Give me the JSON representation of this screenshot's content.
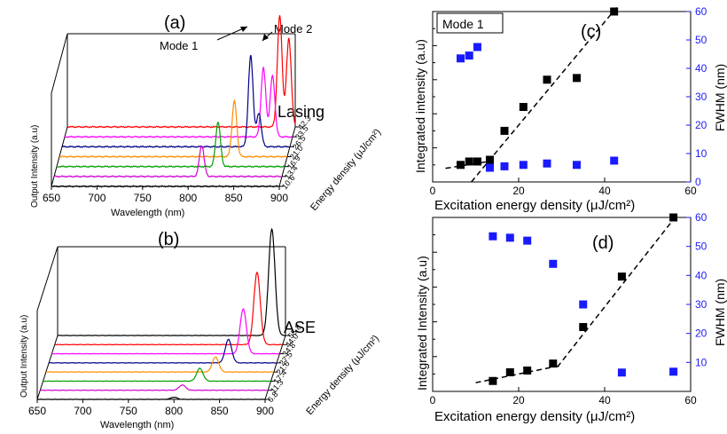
{
  "figure": {
    "panel_a_label": "(a)",
    "panel_b_label": "(b)",
    "panel_c_label": "(c)",
    "panel_d_label": "(d)",
    "lasing_label": "Lasing",
    "ase_label": "ASE",
    "mode1_label": "Mode 1",
    "mode2_label": "Mode 2",
    "mode1_box_label": "Mode 1"
  },
  "chart_data": [
    {
      "id": "a",
      "type": "line",
      "title": "",
      "xlabel": "Wavelength (nm)",
      "ylabel": "Output Intensity (a.u)",
      "zlabel": "Energy density (μJ/cm²)",
      "x_ticks": [
        650,
        700,
        750,
        800,
        850,
        900
      ],
      "z_ticks": [
        "10.6",
        "13.4",
        "16.9",
        "21.0",
        "26.5",
        "33.5",
        "42.3"
      ],
      "colors": [
        "#000000",
        "#d400d4",
        "#00a000",
        "#ff8c00",
        "#00008b",
        "#ff00ff",
        "#ff0000"
      ],
      "series": [
        {
          "energy": 10.6,
          "peaks": []
        },
        {
          "energy": 13.4,
          "peaks": [
            {
              "wavelength": 812,
              "height": 0.28
            }
          ]
        },
        {
          "energy": 16.9,
          "peaks": [
            {
              "wavelength": 827,
              "height": 0.4
            }
          ]
        },
        {
          "energy": 21.0,
          "peaks": [
            {
              "wavelength": 842,
              "height": 0.5
            }
          ]
        },
        {
          "energy": 26.5,
          "peaks": [
            {
              "wavelength": 857,
              "height": 0.82
            },
            {
              "wavelength": 866,
              "height": 0.3
            }
          ]
        },
        {
          "energy": 33.5,
          "peaks": [
            {
              "wavelength": 868,
              "height": 0.62
            },
            {
              "wavelength": 878,
              "height": 0.55
            }
          ]
        },
        {
          "energy": 42.3,
          "peaks": [
            {
              "wavelength": 883,
              "height": 1.0
            },
            {
              "wavelength": 893,
              "height": 0.8
            }
          ]
        }
      ]
    },
    {
      "id": "b",
      "type": "line",
      "title": "",
      "xlabel": "Wavelength (nm)",
      "ylabel": "Output Intensity (a.u)",
      "zlabel": "Energy density (μJ/cm²)",
      "x_ticks": [
        650,
        700,
        750,
        800,
        850,
        900
      ],
      "z_ticks": [
        "6.8",
        "11.3",
        "17.4",
        "21.6",
        "27.5",
        "34.8",
        "44.0",
        "55.8"
      ],
      "colors": [
        "#000000",
        "#d400d4",
        "#00a000",
        "#ff8c00",
        "#00008b",
        "#ff00ff",
        "#ff0000",
        "#000000"
      ],
      "series": [
        {
          "energy": 6.8,
          "peak_wavelength": 800,
          "height": 0.02
        },
        {
          "energy": 11.3,
          "peak_wavelength": 806,
          "height": 0.05
        },
        {
          "energy": 17.4,
          "peak_wavelength": 822,
          "height": 0.12
        },
        {
          "energy": 21.6,
          "peak_wavelength": 836,
          "height": 0.14
        },
        {
          "energy": 27.5,
          "peak_wavelength": 847,
          "height": 0.22
        },
        {
          "energy": 34.8,
          "peak_wavelength": 860,
          "height": 0.42
        },
        {
          "energy": 44.0,
          "peak_wavelength": 872,
          "height": 0.68
        },
        {
          "energy": 55.8,
          "peak_wavelength": 885,
          "height": 1.0
        }
      ]
    },
    {
      "id": "c",
      "type": "scatter",
      "title": "",
      "xlabel": "Excitation energy density (μJ/cm²)",
      "ylabel": "Integrated intensity (a.u)",
      "y2label": "FWHM (nm)",
      "xlim": [
        0,
        60
      ],
      "x_ticks": [
        0,
        20,
        40,
        60
      ],
      "ylim_left": [
        0,
        1
      ],
      "y2lim": [
        0,
        60
      ],
      "y2_ticks": [
        0,
        10,
        20,
        30,
        40,
        50,
        60
      ],
      "series": [
        {
          "name": "",
          "axis": "left",
          "color": "#000000",
          "x": [
            6.5,
            8.5,
            10.4,
            13.3,
            16.7,
            21.1,
            26.6,
            33.5,
            42.2
          ],
          "y": [
            0.1,
            0.12,
            0.12,
            0.13,
            0.3,
            0.44,
            0.6,
            0.61,
            1.0
          ]
        },
        {
          "name": "",
          "axis": "right",
          "color": "#1a1aff",
          "x": [
            6.5,
            8.5,
            10.4,
            13.3,
            16.7,
            21.1,
            26.6,
            33.5,
            42.2
          ],
          "y": [
            43.5,
            44.5,
            47.5,
            5.0,
            5.5,
            6.0,
            6.5,
            6.0,
            7.5
          ]
        }
      ],
      "fit_lines": [
        {
          "x": [
            3,
            13
          ],
          "y": [
            0.08,
            0.12
          ]
        },
        {
          "x": [
            9,
            43
          ],
          "y": [
            0.0,
            1.03
          ]
        }
      ]
    },
    {
      "id": "d",
      "type": "scatter",
      "title": "",
      "xlabel": "Excitation energy density (μJ/cm²)",
      "ylabel": "Integrated Intensity (a.u)",
      "y2label": "FWHM (nm)",
      "xlim": [
        0,
        60
      ],
      "x_ticks": [
        0,
        20,
        40,
        60
      ],
      "ylim_left": [
        0,
        1
      ],
      "y2lim": [
        0,
        60
      ],
      "y2_ticks": [
        10,
        20,
        30,
        40,
        50,
        60
      ],
      "series": [
        {
          "name": "",
          "axis": "left",
          "color": "#000000",
          "x": [
            14,
            18,
            22,
            28,
            35,
            44,
            56
          ],
          "y": [
            0.06,
            0.11,
            0.12,
            0.16,
            0.37,
            0.66,
            1.0
          ]
        },
        {
          "name": "",
          "axis": "right",
          "color": "#1a1aff",
          "x": [
            14,
            18,
            22,
            28,
            35,
            44,
            56
          ],
          "y": [
            53.5,
            53.0,
            52.0,
            44.0,
            30.0,
            6.5,
            6.8
          ]
        }
      ],
      "fit_lines": [
        {
          "x": [
            10,
            30
          ],
          "y": [
            0.05,
            0.15
          ]
        },
        {
          "x": [
            29,
            57
          ],
          "y": [
            0.14,
            1.02
          ]
        }
      ]
    }
  ]
}
